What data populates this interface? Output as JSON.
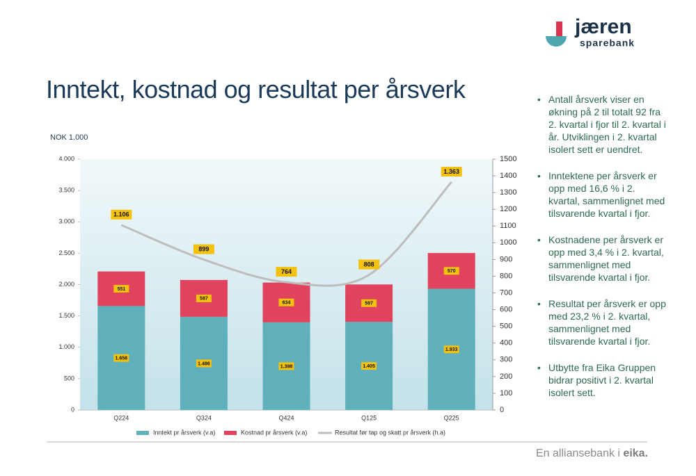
{
  "logo": {
    "name": "jæren",
    "sub": "sparebank"
  },
  "bullets": [
    "Antall årsverk viser en økning på 2 til totalt 92 fra 2. kvartal i fjor til 2. kvartal i år. Utviklingen i 2. kvartal isolert sett er uendret.",
    "Inntektene per årsverk er opp med 16,6 % i 2. kvartal, sammenlignet med tilsvarende kvartal i fjor.",
    "Kostnadene per årsverk er opp med 3,4 % i 2. kvartal, sammenlignet med tilsvarende kvartal i fjor.",
    "Resultat per årsverk er opp med 23,2 % i 2. kvartal, sammenlignet med tilsvarende kvartal i fjor.",
    "Utbytte fra Eika Gruppen bidrar positivt i 2. kvartal isolert sett."
  ],
  "footer": {
    "text": "En alliansebank i",
    "brand": "eika."
  },
  "chart_data": {
    "type": "bar",
    "stacked": true,
    "title": "Inntekt, kostnad og resultat per årsverk",
    "y_label": "NOK 1.000",
    "categories": [
      "Q224",
      "Q324",
      "Q424",
      "Q125",
      "Q225"
    ],
    "series": [
      {
        "name": "Inntekt pr årsverk (v.a)",
        "color": "#5fb0bb",
        "values": [
          1658,
          1486,
          1398,
          1405,
          1933
        ],
        "value_labels": [
          "1.658",
          "1.486",
          "1.398",
          "1.405",
          "1.933"
        ]
      },
      {
        "name": "Kostnad pr årsverk (v.a)",
        "color": "#e0435d",
        "values": [
          551,
          587,
          634,
          597,
          570
        ]
      },
      {
        "name": "Resultat før tap og skatt pr årsverk (h.a)",
        "color": "#bdbdbd",
        "type": "line",
        "axis": "y2",
        "values": [
          1106,
          899,
          764,
          808,
          1363
        ],
        "value_labels": [
          "1.106",
          "899",
          "764",
          "808",
          "1.363"
        ]
      }
    ],
    "ylim": [
      0,
      4000
    ],
    "yticks": [
      0,
      500,
      {
        "value": 1000,
        "label": "1.000"
      },
      {
        "value": 1500,
        "label": "1.500"
      },
      {
        "value": 2000,
        "label": "2.000"
      },
      {
        "value": 2500,
        "label": "2.500"
      },
      {
        "value": 3000,
        "label": "3.000"
      },
      {
        "value": 3500,
        "label": "3.500"
      },
      {
        "value": 4000,
        "label": "4.000"
      }
    ],
    "y2lim": [
      0,
      1500
    ],
    "y2ticks": [
      0,
      100,
      200,
      300,
      400,
      500,
      600,
      700,
      800,
      900,
      1000,
      1100,
      1200,
      1300,
      1400,
      1500
    ],
    "legend": "bottom"
  }
}
